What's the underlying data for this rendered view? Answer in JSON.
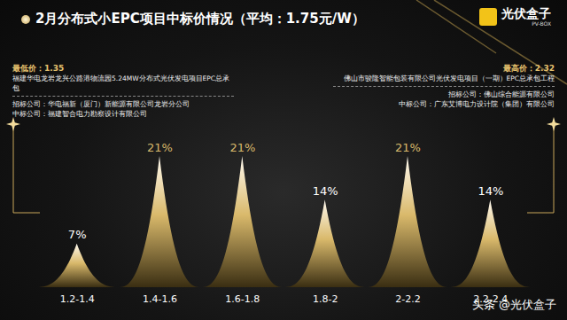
{
  "chart_data": {
    "type": "bar",
    "title": "2月分布式小EPC项目中标价情况（平均：1.75元/W）",
    "categories": [
      "1.2-1.4",
      "1.4-1.6",
      "1.6-1.8",
      "1.8-2",
      "2-2.2",
      "2.2-2.4"
    ],
    "values": [
      7,
      21,
      21,
      14,
      21,
      14
    ],
    "value_labels": [
      "7%",
      "21%",
      "21%",
      "14%",
      "21%",
      "14%"
    ],
    "color": "#d9b96b",
    "data_labels": true,
    "tick_labels": "x",
    "annotations": [
      {
        "heading": "最低价：1.35",
        "lines": [
          "福建华电龙岩龙兴公路港物流园5.24MW分布式光伏发电项目EPC总承包",
          "招标公司：华电福新（厦门）新能源有限公司龙岩分公司",
          "中标公司：福建智合电力勘察设计有限公司"
        ]
      },
      {
        "heading": "最高价：2.32",
        "lines": [
          "佛山市骏隆智能包装有限公司光伏发电项目（一期）EPC总承包工程",
          "招标公司：佛山综合能源有限公司",
          "中标公司：广东艾博电力设计院（集团）有限公司"
        ]
      }
    ]
  },
  "logo": {
    "name": "光伏盒子",
    "subtitle": "PV-BOX"
  },
  "watermark": "头条 @光伏盒子"
}
